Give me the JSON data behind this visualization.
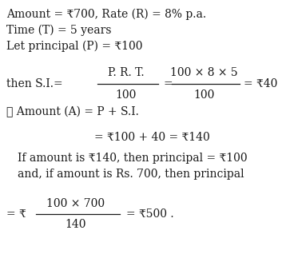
{
  "background_color": "#ffffff",
  "text_color": "#1a1a1a",
  "figsize": [
    3.53,
    3.28
  ],
  "dpi": 100,
  "font_size": 10.0,
  "line1": "Amount = ₹700, Rate (R) = 8% p.a.",
  "line2": "Time (T) = 5 years",
  "line3": "Let principal (P) = ₹100",
  "frac1_prefix": "then S.I.=",
  "frac1_num": "P. R. T.",
  "frac1_den": "100",
  "frac1_eq": "=",
  "frac2_num": "100 × 8 × 5",
  "frac2_den": "100",
  "frac2_result": "= ₹40",
  "line5": "∴ Amount (A) = P + S.I.",
  "line6": "= ₹100 + 40 = ₹140",
  "line7": "If amount is ₹140, then principal = ₹100",
  "line8": "and, if amount is Rs. 700, then principal",
  "frac3_prefix": "= ₹",
  "frac3_num": "100 × 700",
  "frac3_den": "140",
  "frac3_result": "= ₹500 ."
}
